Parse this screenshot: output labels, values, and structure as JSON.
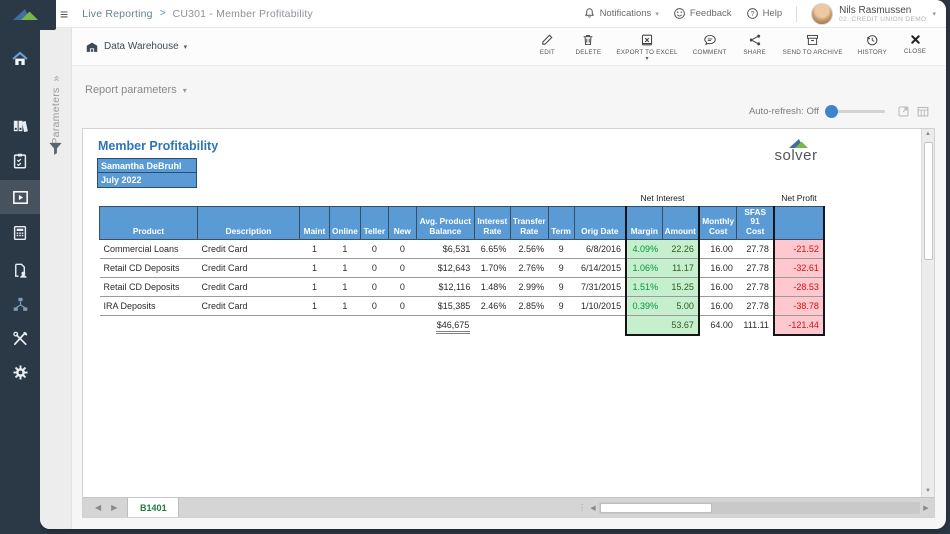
{
  "topbar": {
    "breadcrumb": {
      "root": "Live Reporting",
      "separator": ">",
      "page": "CU301 - Member Profitability"
    },
    "notifications_label": "Notifications",
    "feedback_label": "Feedback",
    "help_label": "Help",
    "user": {
      "name": "Nils Rasmussen",
      "org": "02. Credit Union Demo"
    }
  },
  "toolbar": {
    "source_label": "Data Warehouse",
    "actions": [
      {
        "label": "Edit",
        "icon": "pencil"
      },
      {
        "label": "Delete",
        "icon": "trash"
      },
      {
        "label": "Export to Excel",
        "icon": "excel",
        "has_caret": true
      },
      {
        "label": "Comment",
        "icon": "comment"
      },
      {
        "label": "Share",
        "icon": "share"
      },
      {
        "label": "Send to Archive",
        "icon": "archive"
      },
      {
        "label": "History",
        "icon": "history"
      },
      {
        "label": "Close",
        "icon": "close"
      }
    ]
  },
  "params_strip": {
    "label": "Parameters",
    "chevron": "»"
  },
  "report_parameters_label": "Report parameters",
  "auto_refresh_label": "Auto-refresh: Off",
  "report": {
    "title": "Member Profitability",
    "parameter_values": [
      "Samantha DeBruhl",
      "July 2022"
    ],
    "logo_text": "solver",
    "sheet_tab": "B1401",
    "table": {
      "group_headers": {
        "net_interest": "Net Interest",
        "net_profit": "Net Profit"
      },
      "columns": [
        "Product",
        "Description",
        "Maint",
        "Online",
        "Teller",
        "New",
        "Avg. Product\nBalance",
        "Interest\nRate",
        "Transfer\nRate",
        "Term",
        "Orig Date",
        "Margin",
        "Amount",
        "Monthly\nCost",
        "SFAS 91\nCost",
        ""
      ],
      "rows": [
        [
          "Commercial Loans",
          "Credit Card",
          "1",
          "1",
          "0",
          "0",
          "$6,531",
          "6.65%",
          "2.56%",
          "9",
          "6/8/2016",
          "4.09%",
          "22.26",
          "16.00",
          "27.78",
          "-21.52"
        ],
        [
          "Retail CD Deposits",
          "Credit Card",
          "1",
          "1",
          "0",
          "0",
          "$12,643",
          "1.70%",
          "2.76%",
          "9",
          "6/14/2015",
          "1.06%",
          "11.17",
          "16.00",
          "27.78",
          "-32.61"
        ],
        [
          "Retail CD Deposits",
          "Credit Card",
          "1",
          "1",
          "0",
          "0",
          "$12,116",
          "1.48%",
          "2.99%",
          "9",
          "7/31/2015",
          "1.51%",
          "15.25",
          "16.00",
          "27.78",
          "-28.53"
        ],
        [
          "IRA Deposits",
          "Credit Card",
          "1",
          "1",
          "0",
          "0",
          "$15,385",
          "2.46%",
          "2.85%",
          "9",
          "1/10/2015",
          "0.39%",
          "5.00",
          "16.00",
          "27.78",
          "-38.78"
        ]
      ],
      "total_row": [
        "",
        "",
        "",
        "",
        "",
        "",
        "$46,675",
        "",
        "",
        "",
        "",
        "",
        "53.67",
        "64.00",
        "111.11",
        "-121.44"
      ]
    }
  },
  "colors": {
    "accent_blue": "#2E75B6",
    "header_blue": "#5B9BD5",
    "green_fill": "#C6EFCE",
    "green_label_fill": "#C6E0B4",
    "pink_fill": "#FFC7CE",
    "negative_red": "#C00000",
    "margin_green": "#009640",
    "tab_green": "#1F7A45",
    "sidebar_navy": "#2B3947",
    "logo_green": "#7AB648",
    "logo_blue": "#4178A0"
  }
}
